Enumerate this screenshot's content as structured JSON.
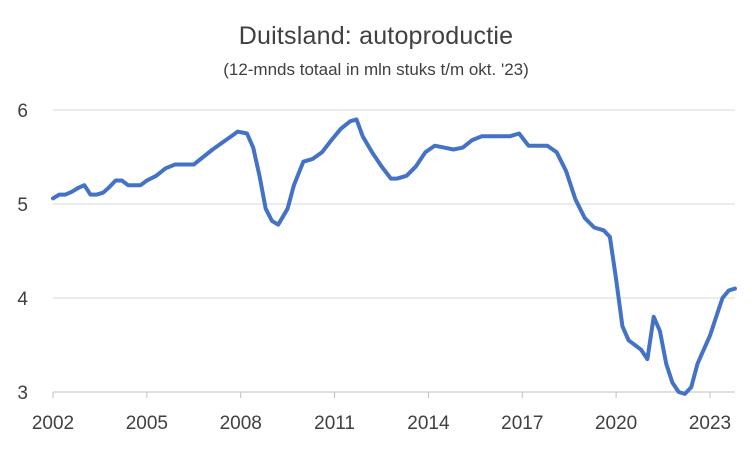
{
  "chart_data": {
    "type": "line",
    "title": "Duitsland: autoproductie",
    "subtitle": "(12-mnds totaal in mln stuks t/m okt. '23)",
    "xlabel": "",
    "ylabel": "",
    "xlim": [
      2002,
      2023.8
    ],
    "ylim": [
      3,
      6
    ],
    "x_ticks": [
      2002,
      2005,
      2008,
      2011,
      2014,
      2017,
      2020,
      2023
    ],
    "x_tick_labels": [
      "2002",
      "2005",
      "2008",
      "2011",
      "2014",
      "2017",
      "2020",
      "2023"
    ],
    "y_ticks": [
      3,
      4,
      5,
      6
    ],
    "y_tick_labels": [
      "3",
      "4",
      "5",
      "6"
    ],
    "grid": "horizontal",
    "legend": "none",
    "series_color": "#4472C4",
    "gridline_color": "#d9d9d9",
    "series": [
      {
        "x": [
          2002.0,
          2002.2,
          2002.4,
          2002.6,
          2002.8,
          2003.0,
          2003.2,
          2003.4,
          2003.6,
          2003.8,
          2004.0,
          2004.2,
          2004.4,
          2004.6,
          2004.8,
          2005.0,
          2005.3,
          2005.6,
          2005.9,
          2006.2,
          2006.5,
          2006.8,
          2007.1,
          2007.4,
          2007.7,
          2007.9,
          2008.2,
          2008.4,
          2008.6,
          2008.8,
          2009.0,
          2009.2,
          2009.5,
          2009.7,
          2010.0,
          2010.3,
          2010.6,
          2010.9,
          2011.2,
          2011.5,
          2011.7,
          2011.9,
          2012.2,
          2012.5,
          2012.8,
          2013.0,
          2013.3,
          2013.6,
          2013.9,
          2014.2,
          2014.5,
          2014.8,
          2015.1,
          2015.4,
          2015.7,
          2016.0,
          2016.3,
          2016.6,
          2016.9,
          2017.2,
          2017.5,
          2017.8,
          2018.1,
          2018.4,
          2018.7,
          2019.0,
          2019.3,
          2019.6,
          2019.8,
          2020.0,
          2020.2,
          2020.4,
          2020.6,
          2020.8,
          2021.0,
          2021.2,
          2021.4,
          2021.6,
          2021.8,
          2022.0,
          2022.2,
          2022.4,
          2022.6,
          2022.8,
          2023.0,
          2023.2,
          2023.4,
          2023.6,
          2023.8
        ],
        "values": [
          5.06,
          5.1,
          5.1,
          5.13,
          5.17,
          5.2,
          5.1,
          5.1,
          5.12,
          5.18,
          5.25,
          5.25,
          5.2,
          5.2,
          5.2,
          5.25,
          5.3,
          5.38,
          5.42,
          5.42,
          5.42,
          5.5,
          5.58,
          5.65,
          5.72,
          5.77,
          5.75,
          5.6,
          5.3,
          4.95,
          4.82,
          4.78,
          4.95,
          5.2,
          5.45,
          5.48,
          5.55,
          5.68,
          5.8,
          5.88,
          5.9,
          5.72,
          5.55,
          5.4,
          5.27,
          5.27,
          5.3,
          5.4,
          5.55,
          5.62,
          5.6,
          5.58,
          5.6,
          5.68,
          5.72,
          5.72,
          5.72,
          5.72,
          5.75,
          5.62,
          5.62,
          5.62,
          5.55,
          5.35,
          5.05,
          4.85,
          4.75,
          4.72,
          4.65,
          4.2,
          3.7,
          3.55,
          3.5,
          3.45,
          3.35,
          3.8,
          3.65,
          3.3,
          3.1,
          3.0,
          2.98,
          3.05,
          3.3,
          3.45,
          3.6,
          3.8,
          4.0,
          4.08,
          4.1
        ]
      }
    ]
  }
}
